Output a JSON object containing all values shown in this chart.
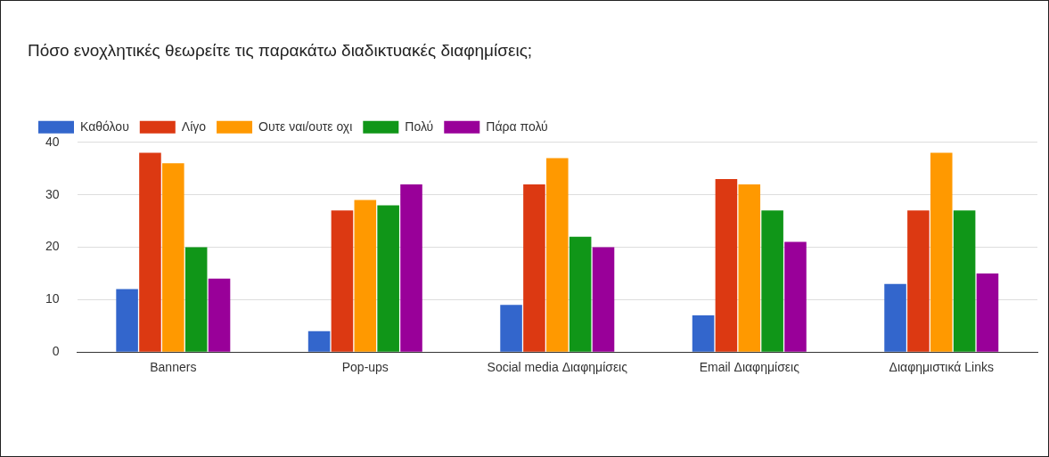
{
  "chart_data": {
    "type": "bar",
    "title": "Πόσο ενοχλητικές θεωρείτε τις παρακάτω διαδικτυακές διαφημίσεις;",
    "categories": [
      "Banners",
      "Pop-ups",
      "Social media Διαφημίσεις",
      "Email Διαφημίσεις",
      "Διαφημιστικά Links"
    ],
    "series": [
      {
        "name": "Καθόλου",
        "color": "#3366cc",
        "values": [
          12,
          4,
          9,
          7,
          13
        ]
      },
      {
        "name": "Λίγο",
        "color": "#dc3912",
        "values": [
          38,
          27,
          32,
          33,
          27
        ]
      },
      {
        "name": "Ουτε ναι/ουτε οχι",
        "color": "#ff9900",
        "values": [
          36,
          29,
          37,
          32,
          38
        ]
      },
      {
        "name": "Πολύ",
        "color": "#109618",
        "values": [
          20,
          28,
          22,
          27,
          27
        ]
      },
      {
        "name": "Πάρα πολύ",
        "color": "#990099",
        "values": [
          14,
          32,
          20,
          21,
          15
        ]
      }
    ],
    "ylim": [
      0,
      40
    ],
    "yticks": [
      0,
      10,
      20,
      30,
      40
    ],
    "grid": "y",
    "legend": "top left"
  }
}
